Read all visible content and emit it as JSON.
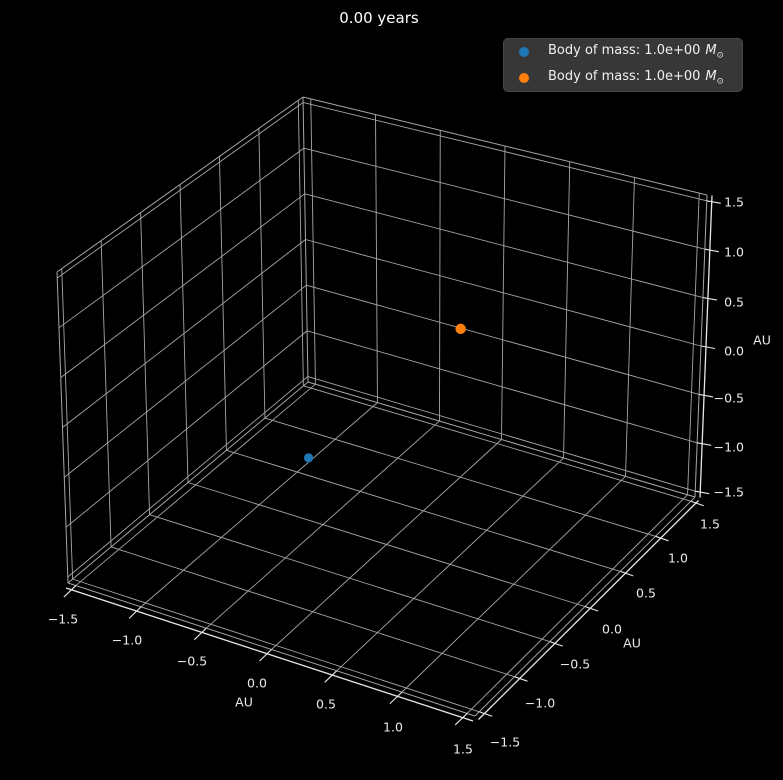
{
  "figure": {
    "background": "#000000"
  },
  "legend": {
    "position": "upper right",
    "entries": [
      {
        "label": "Body of mass: 1.0e+00 M⊙",
        "prefix": "Body of mass: 1.0e+00",
        "symbol": "M",
        "subscript": "⊙",
        "color": "#1f77b4"
      },
      {
        "label": "Body of mass: 1.0e+00 M⊙",
        "prefix": "Body of mass: 1.0e+00",
        "symbol": "M",
        "subscript": "⊙",
        "color": "#ff7f0e"
      }
    ]
  },
  "chart_data": {
    "type": "scatter",
    "projection": "3d",
    "title": "0.00 years",
    "xlabel": "AU",
    "ylabel": "AU",
    "zlabel": "AU",
    "xlim": [
      -1.56,
      1.56
    ],
    "ylim": [
      -1.56,
      1.56
    ],
    "zlim": [
      -1.56,
      1.56
    ],
    "grid": true,
    "tick_values": [
      -1.5,
      -1.0,
      -0.5,
      0.0,
      0.5,
      1.0,
      1.5
    ],
    "tick_labels": [
      "−1.5",
      "−1.0",
      "−0.5",
      "0.0",
      "0.5",
      "1.0",
      "1.5"
    ],
    "series": [
      {
        "name": "Body of mass: 1.0e+00 M⊙",
        "color": "#1f77b4",
        "marker": "circle",
        "marker_size": 4.6,
        "points": [
          [
            0.0,
            -1.0,
            0.0
          ]
        ]
      },
      {
        "name": "Body of mass: 1.0e+00 M⊙",
        "color": "#ff7f0e",
        "marker": "circle",
        "marker_size": 5.2,
        "points": [
          [
            0.0,
            1.0,
            0.0
          ]
        ]
      }
    ],
    "colors": {
      "grid": "#a6a6a6",
      "spine": "#e8e8e8",
      "tick_text": "#eaeaea",
      "title_text": "#ffffff",
      "legend_bg": "#373737"
    }
  }
}
